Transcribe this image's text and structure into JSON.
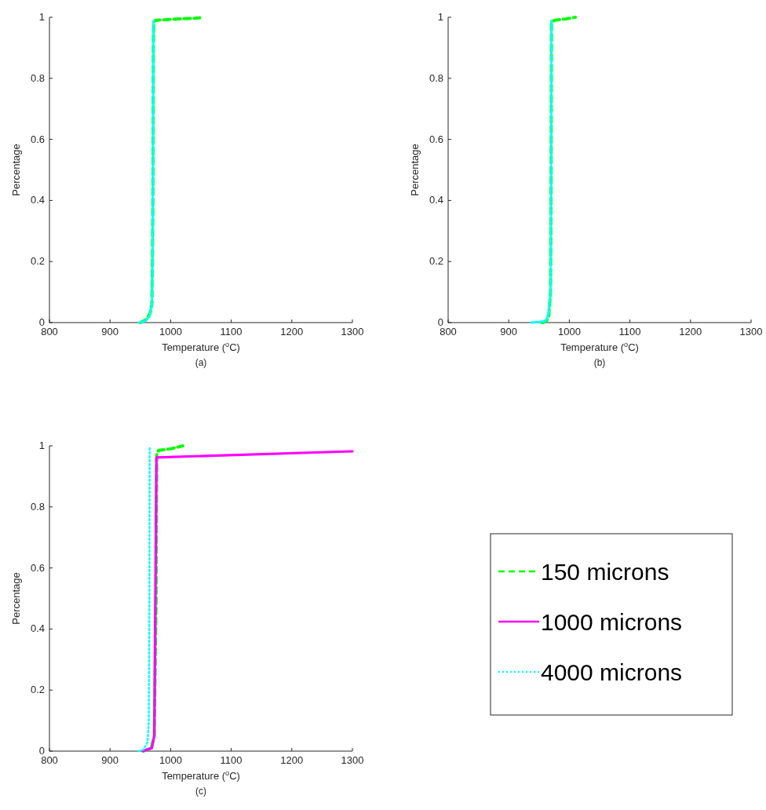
{
  "chart_data": [
    {
      "type": "line",
      "xlabel": "Temperature ($^{o}$C)",
      "ylabel": "Percentage",
      "subtitle": "(a)",
      "xlim": [
        800,
        1300
      ],
      "ylim": [
        0,
        1
      ],
      "xticks": [
        800,
        900,
        1000,
        1100,
        1200,
        1300
      ],
      "yticks": [
        0,
        0.2,
        0.4,
        0.6,
        0.8,
        1
      ],
      "grid": false,
      "legend": false,
      "series": [
        {
          "color": "#00ff00",
          "line_style": "dashed",
          "x": [
            950,
            960,
            966,
            969,
            970,
            971,
            971.5,
            972,
            975,
            1000,
            1048
          ],
          "values": [
            0,
            0.01,
            0.03,
            0.06,
            0.2,
            0.5,
            0.9,
            0.985,
            0.99,
            0.993,
            0.998
          ]
        },
        {
          "color": "#00ffff",
          "line_style": "dotted",
          "x": [
            948,
            958,
            965,
            969,
            970,
            971,
            971.5,
            972
          ],
          "values": [
            0,
            0.005,
            0.02,
            0.06,
            0.2,
            0.5,
            0.9,
            0.99
          ]
        }
      ]
    },
    {
      "type": "line",
      "xlabel": "Temperature ($^{o}$C)",
      "ylabel": "Percentage",
      "subtitle": "(b)",
      "xlim": [
        800,
        1300
      ],
      "ylim": [
        0,
        1
      ],
      "xticks": [
        800,
        900,
        1000,
        1100,
        1200,
        1300
      ],
      "yticks": [
        0,
        0.2,
        0.4,
        0.6,
        0.8,
        1
      ],
      "grid": false,
      "legend": false,
      "series": [
        {
          "color": "#00ff00",
          "line_style": "dashed",
          "x": [
            955,
            962,
            966,
            969,
            970,
            970.5,
            975,
            995,
            1010
          ],
          "values": [
            0,
            0.005,
            0.02,
            0.1,
            0.5,
            0.98,
            0.99,
            0.995,
            1.0
          ]
        },
        {
          "color": "#00ffff",
          "line_style": "dotted",
          "x": [
            937,
            950,
            961,
            966,
            969,
            970,
            970.5
          ],
          "values": [
            0,
            0.002,
            0.005,
            0.03,
            0.1,
            0.5,
            0.99
          ]
        }
      ]
    },
    {
      "type": "line",
      "xlabel": "Temperature ($^{o}$C)",
      "ylabel": "Percentage",
      "subtitle": "(c)",
      "xlim": [
        800,
        1300
      ],
      "ylim": [
        0,
        1
      ],
      "xticks": [
        800,
        900,
        1000,
        1100,
        1200,
        1300
      ],
      "yticks": [
        0,
        0.2,
        0.4,
        0.6,
        0.8,
        1
      ],
      "grid": false,
      "legend": "right",
      "series": [
        {
          "name": "150 microns",
          "color": "#00ff00",
          "line_style": "dashed",
          "x": [
            955,
            968,
            973,
            976,
            977,
            980,
            1000,
            1020
          ],
          "values": [
            0,
            0.01,
            0.05,
            0.5,
            0.97,
            0.985,
            0.99,
            1.0
          ]
        },
        {
          "name": "1000 microns",
          "color": "#ff00ff",
          "line_style": "solid",
          "x": [
            954,
            969,
            973,
            976.6,
            1300
          ],
          "values": [
            0,
            0.01,
            0.05,
            0.962,
            0.982
          ]
        },
        {
          "name": "4000 microns",
          "color": "#00ffff",
          "line_style": "dotted",
          "x": [
            947,
            955,
            962,
            964,
            965,
            965.5
          ],
          "values": [
            0,
            0.005,
            0.03,
            0.1,
            0.5,
            1.0
          ]
        }
      ]
    }
  ]
}
